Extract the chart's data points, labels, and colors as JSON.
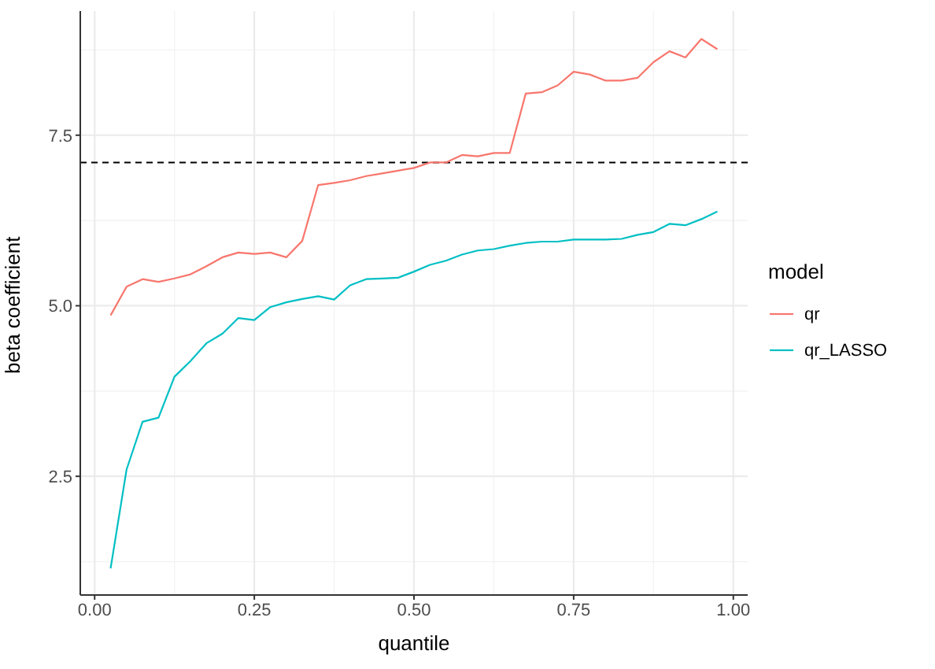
{
  "chart_data": {
    "type": "line",
    "xlabel": "quantile",
    "ylabel": "beta coefficient",
    "legend_title": "model",
    "legend": "right",
    "grid": true,
    "x": [
      0.025,
      0.05,
      0.075,
      0.1,
      0.125,
      0.15,
      0.175,
      0.2,
      0.225,
      0.25,
      0.275,
      0.3,
      0.325,
      0.35,
      0.375,
      0.4,
      0.425,
      0.45,
      0.475,
      0.5,
      0.525,
      0.55,
      0.575,
      0.6,
      0.625,
      0.65,
      0.675,
      0.7,
      0.725,
      0.75,
      0.775,
      0.8,
      0.825,
      0.85,
      0.875,
      0.9,
      0.925,
      0.95,
      0.975
    ],
    "xlim": [
      -0.0225,
      1.0225
    ],
    "xticks": [
      {
        "value": 0,
        "label": "0.00"
      },
      0.25,
      {
        "value": 0.5,
        "label": "0.50"
      },
      0.75,
      {
        "value": 1,
        "label": "1.00"
      }
    ],
    "ylim": [
      0.76,
      9.32
    ],
    "yticks": [
      2.5,
      {
        "value": 5,
        "label": "5.0"
      },
      7.5
    ],
    "series": [
      {
        "name": "qr",
        "color": "#f8766d",
        "values": [
          4.86,
          5.28,
          5.39,
          5.35,
          5.4,
          5.46,
          5.58,
          5.71,
          5.78,
          5.76,
          5.78,
          5.71,
          5.95,
          6.77,
          6.8,
          6.84,
          6.9,
          6.94,
          6.98,
          7.02,
          7.1,
          7.1,
          7.21,
          7.19,
          7.24,
          7.24,
          8.11,
          8.13,
          8.23,
          8.43,
          8.39,
          8.3,
          8.3,
          8.34,
          8.57,
          8.73,
          8.64,
          8.91,
          8.76
        ]
      },
      {
        "name": "qr_LASSO",
        "color": "#00bfc4",
        "values": [
          1.15,
          2.6,
          3.3,
          3.36,
          3.96,
          4.19,
          4.45,
          4.59,
          4.82,
          4.79,
          4.98,
          5.05,
          5.1,
          5.14,
          5.09,
          5.3,
          5.39,
          5.4,
          5.41,
          5.5,
          5.6,
          5.66,
          5.75,
          5.81,
          5.83,
          5.88,
          5.92,
          5.94,
          5.94,
          5.97,
          5.97,
          5.97,
          5.98,
          6.04,
          6.08,
          6.2,
          6.18,
          6.27,
          6.38
        ]
      }
    ],
    "ref_lines": [
      {
        "axis": "y",
        "value": 7.1,
        "color": "#000000",
        "line_style": "dashed"
      }
    ],
    "line_style": "solid",
    "marker": "none"
  }
}
